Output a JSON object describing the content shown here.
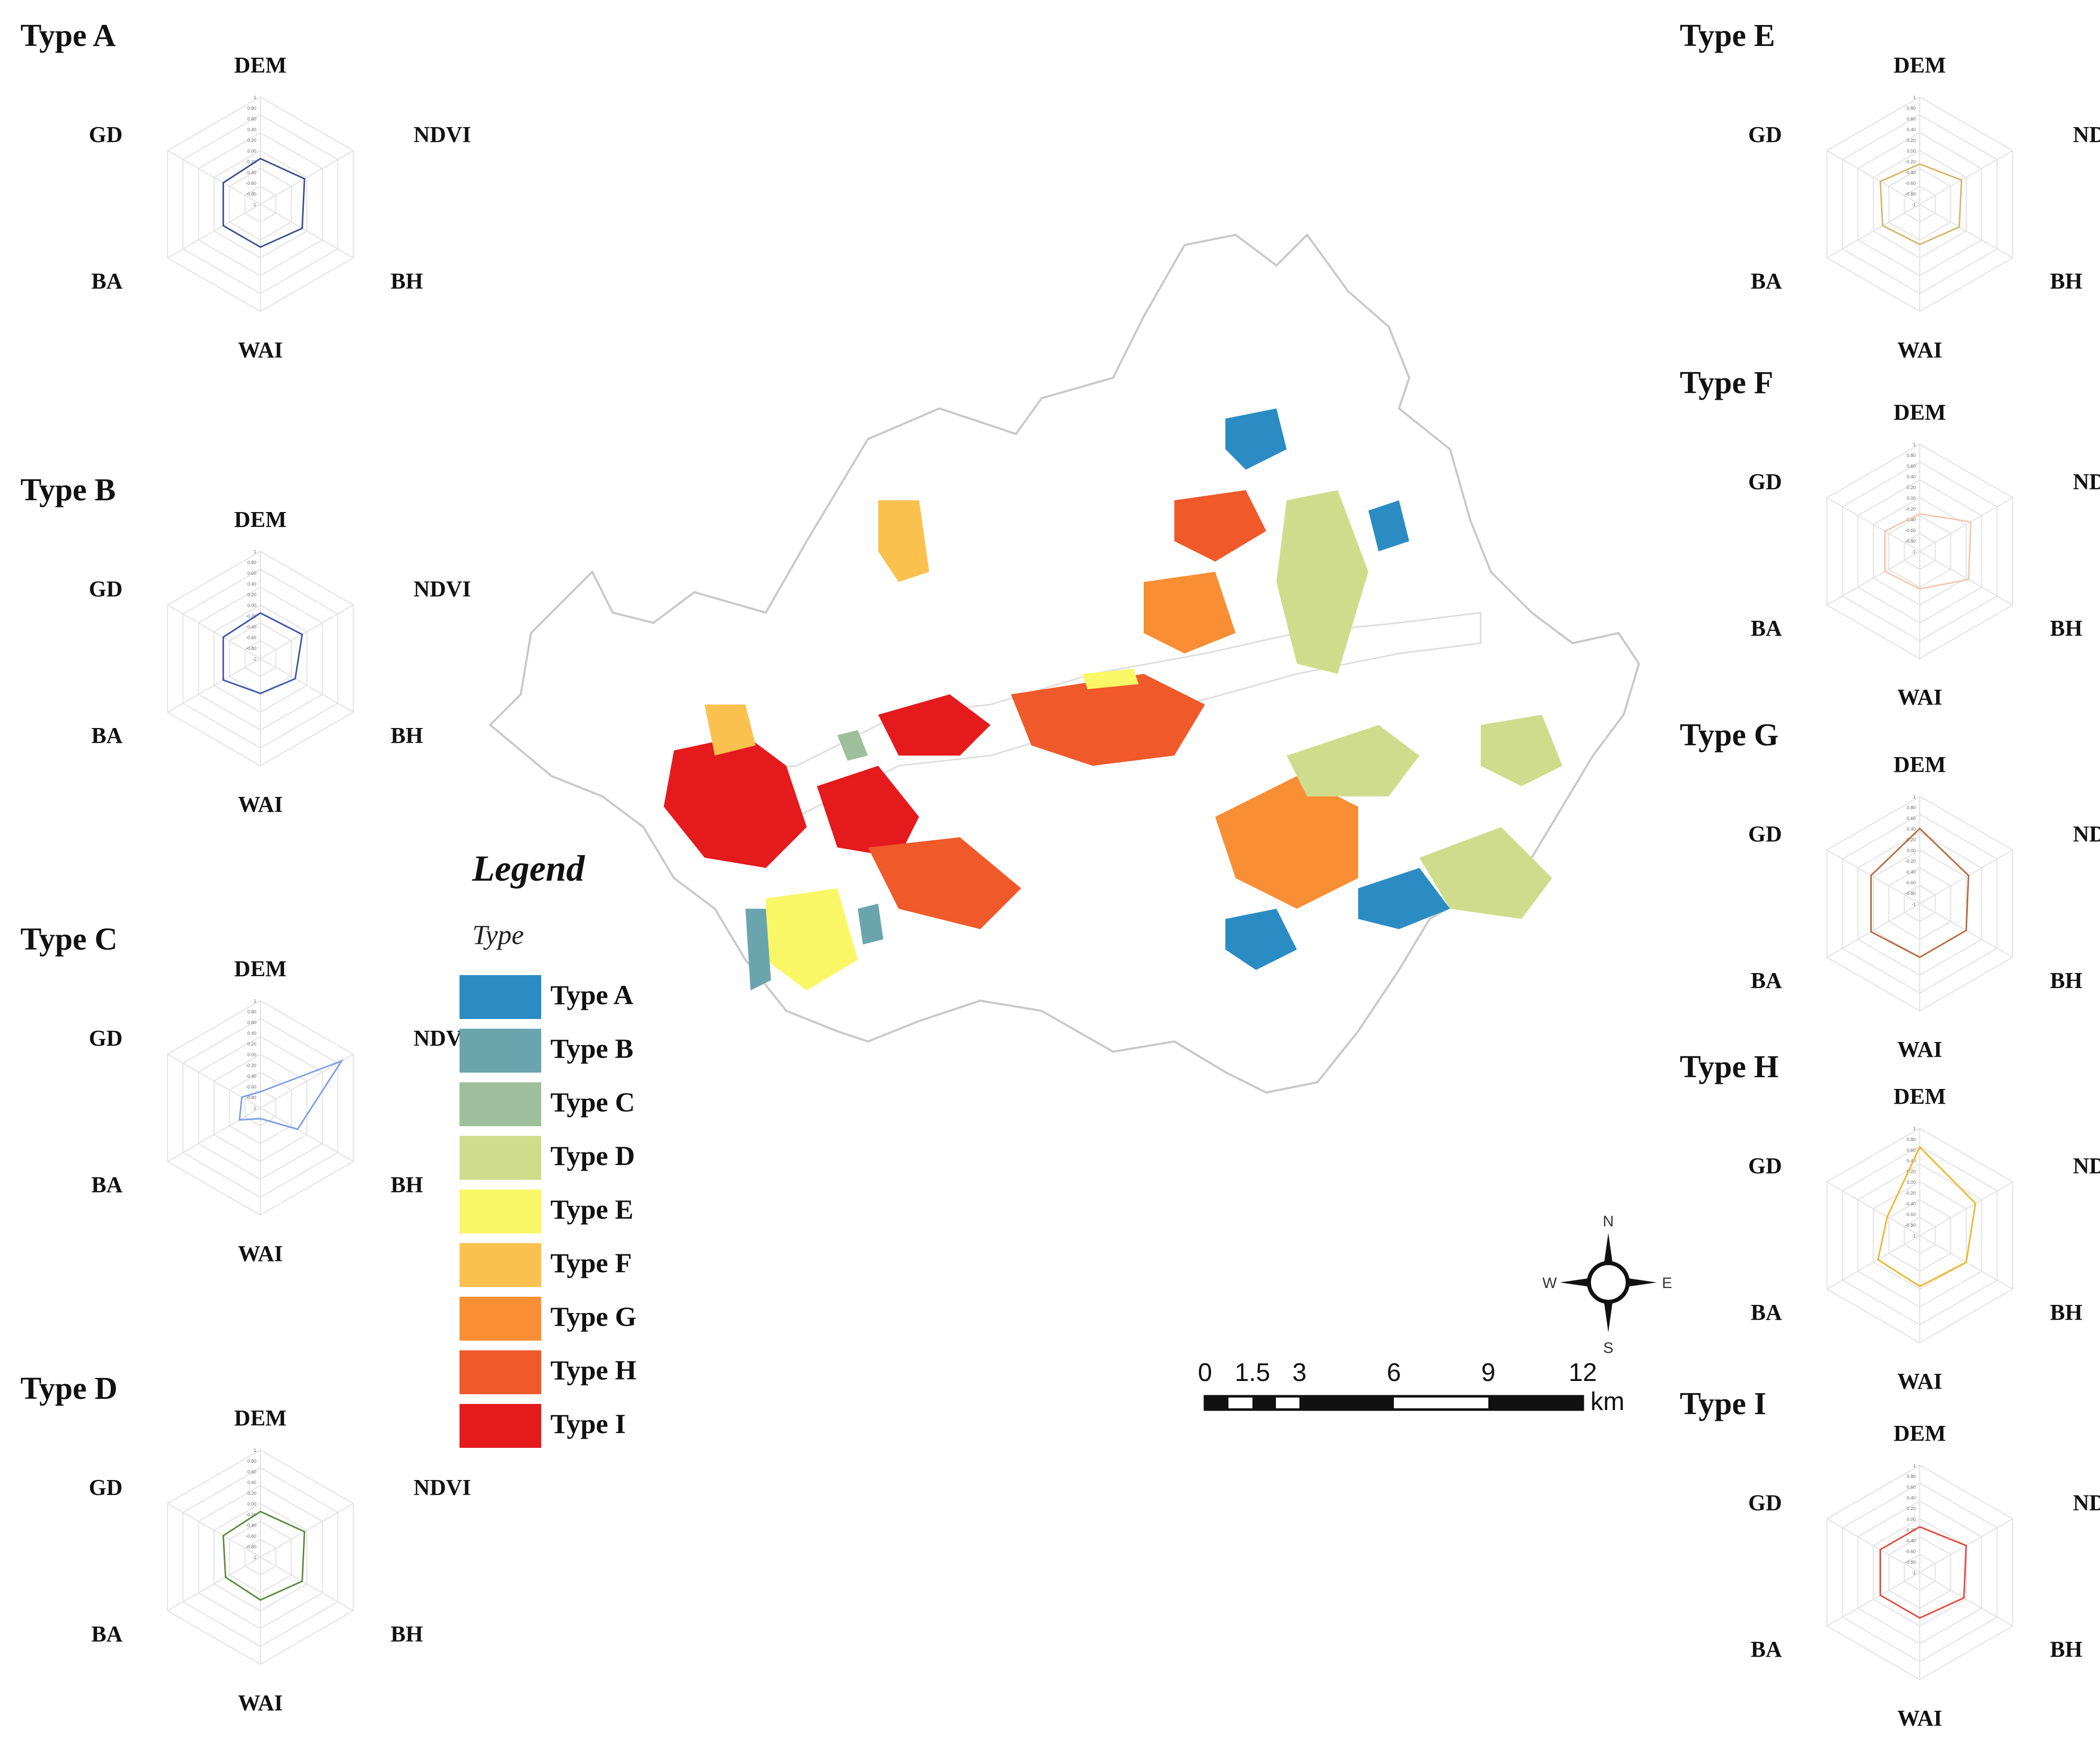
{
  "radar_axes": [
    "DEM",
    "NDVI",
    "BH",
    "WAI",
    "BA",
    "GD"
  ],
  "tick_labels": [
    "1",
    "0.80",
    "0.60",
    "0.40",
    "0.20",
    "0.00",
    "-0.20",
    "-0.40",
    "-0.60",
    "-0.80",
    "-1"
  ],
  "chart_data": [
    {
      "type": "radar",
      "title": "Type A",
      "color": "#3a4e8c",
      "axes": [
        "DEM",
        "NDVI",
        "BH",
        "WAI",
        "BA",
        "GD"
      ],
      "range": [
        -1,
        1
      ],
      "values": [
        -0.15,
        -0.05,
        -0.1,
        -0.2,
        -0.2,
        -0.2
      ]
    },
    {
      "type": "radar",
      "title": "Type B",
      "color": "#3b55a8",
      "axes": [
        "DEM",
        "NDVI",
        "BH",
        "WAI",
        "BA",
        "GD"
      ],
      "range": [
        -1,
        1
      ],
      "values": [
        -0.15,
        -0.1,
        -0.25,
        -0.35,
        -0.2,
        -0.2
      ]
    },
    {
      "type": "radar",
      "title": "Type C",
      "color": "#7b9ee6",
      "axes": [
        "DEM",
        "NDVI",
        "BH",
        "WAI",
        "BA",
        "GD"
      ],
      "range": [
        -1,
        1
      ],
      "values": [
        -0.7,
        0.75,
        -0.2,
        -0.8,
        -0.55,
        -0.6
      ]
    },
    {
      "type": "radar",
      "title": "Type D",
      "color": "#5a8a3c",
      "axes": [
        "DEM",
        "NDVI",
        "BH",
        "WAI",
        "BA",
        "GD"
      ],
      "range": [
        -1,
        1
      ],
      "values": [
        -0.15,
        -0.05,
        -0.1,
        -0.2,
        -0.25,
        -0.2
      ]
    },
    {
      "type": "radar",
      "title": "Type E",
      "color": "#d9b36a",
      "axes": [
        "DEM",
        "NDVI",
        "BH",
        "WAI",
        "BA",
        "GD"
      ],
      "range": [
        -1,
        1
      ],
      "values": [
        -0.25,
        -0.1,
        -0.15,
        -0.25,
        -0.2,
        -0.15
      ]
    },
    {
      "type": "radar",
      "title": "Type F",
      "color": "#f2c8ae",
      "axes": [
        "DEM",
        "NDVI",
        "BH",
        "WAI",
        "BA",
        "GD"
      ],
      "range": [
        -1,
        1
      ],
      "values": [
        -0.3,
        0.1,
        0.05,
        -0.3,
        -0.25,
        -0.25
      ]
    },
    {
      "type": "radar",
      "title": "Type G",
      "color": "#b8693e",
      "axes": [
        "DEM",
        "NDVI",
        "BH",
        "WAI",
        "BA",
        "GD"
      ],
      "range": [
        -1,
        1
      ],
      "values": [
        0.4,
        0.05,
        0.0,
        0.0,
        0.05,
        0.05
      ]
    },
    {
      "type": "radar",
      "title": "Type H",
      "color": "#f0b428",
      "axes": [
        "DEM",
        "NDVI",
        "BH",
        "WAI",
        "BA",
        "GD"
      ],
      "range": [
        -1,
        1
      ],
      "values": [
        0.65,
        0.2,
        0.0,
        -0.05,
        -0.1,
        -0.3
      ]
    },
    {
      "type": "radar",
      "title": "Type I",
      "color": "#e8453c",
      "axes": [
        "DEM",
        "NDVI",
        "BH",
        "WAI",
        "BA",
        "GD"
      ],
      "range": [
        -1,
        1
      ],
      "values": [
        -0.15,
        0.0,
        -0.05,
        -0.15,
        -0.15,
        -0.15
      ]
    }
  ],
  "legend": {
    "title": "Legend",
    "subtitle": "Type",
    "items": [
      {
        "label": "Type A",
        "color": "#2b8cc4"
      },
      {
        "label": "Type B",
        "color": "#6aa5ae"
      },
      {
        "label": "Type C",
        "color": "#9dbf9b"
      },
      {
        "label": "Type D",
        "color": "#cfdc8c"
      },
      {
        "label": "Type E",
        "color": "#f9f766"
      },
      {
        "label": "Type F",
        "color": "#fbc14e"
      },
      {
        "label": "Type G",
        "color": "#f98e35"
      },
      {
        "label": "Type H",
        "color": "#f0592a"
      },
      {
        "label": "Type I",
        "color": "#e41a1c"
      }
    ]
  },
  "compass": {
    "n": "N",
    "s": "S",
    "e": "E",
    "w": "W"
  },
  "scale_bar": {
    "ticks": [
      "0",
      "1.5",
      "3",
      "6",
      "9",
      "12"
    ],
    "unit": "km"
  }
}
